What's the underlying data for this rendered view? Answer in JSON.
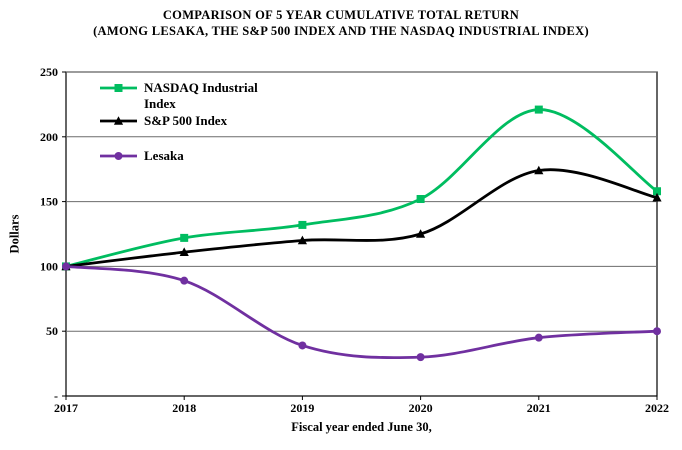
{
  "title": {
    "line1": "COMPARISON OF 5 YEAR CUMULATIVE TOTAL RETURN",
    "line2": "(AMONG LESAKA, THE S&P 500 INDEX AND THE NASDAQ INDUSTRIAL INDEX)"
  },
  "chart_data": {
    "type": "line",
    "line_style": "smooth",
    "xlabel": "Fiscal year ended June 30,",
    "ylabel": "Dollars",
    "categories": [
      "2017",
      "2018",
      "2019",
      "2020",
      "2021",
      "2022"
    ],
    "ylim": [
      0,
      250
    ],
    "yticks": [
      0,
      50,
      100,
      150,
      200,
      250
    ],
    "ytick_labels": [
      "-",
      "50",
      "100",
      "150",
      "200",
      "250"
    ],
    "grid": true,
    "legend_position": "inside-top-left",
    "series": [
      {
        "name": "NASDAQ Industrial Index",
        "marker": "square",
        "color": "#00bd60",
        "values": [
          100,
          122,
          132,
          152,
          221,
          158
        ]
      },
      {
        "name": "S&P 500 Index",
        "marker": "triangle",
        "color": "#000000",
        "values": [
          100,
          111,
          120,
          125,
          174,
          153
        ]
      },
      {
        "name": "Lesaka",
        "marker": "circle",
        "color": "#7030a0",
        "values": [
          100,
          89,
          39,
          30,
          45,
          50
        ]
      }
    ]
  }
}
